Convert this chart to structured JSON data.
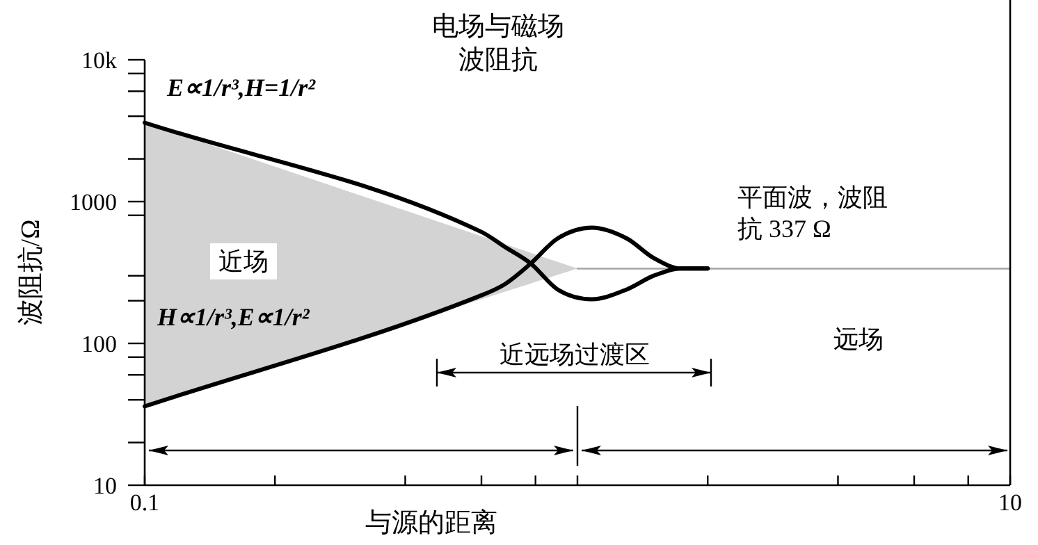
{
  "chart_data": {
    "type": "line",
    "title": "电场与磁场波阻抗",
    "xlabel": "与源的距离",
    "ylabel": "波阻抗/Ω",
    "log": "xy",
    "xlim": [
      0.1,
      10
    ],
    "ylim": [
      10,
      10000
    ],
    "xticks": [
      0.1,
      {
        "value": 0.2,
        "label": null
      },
      {
        "value": 0.4,
        "label": null
      },
      {
        "value": 0.6,
        "label": null
      },
      {
        "value": 0.8,
        "label": null
      },
      {
        "value": 1,
        "label": null
      },
      {
        "value": 2,
        "label": null
      },
      {
        "value": 4,
        "label": null
      },
      {
        "value": 6,
        "label": null
      },
      {
        "value": 8,
        "label": null
      },
      10
    ],
    "yticks": [
      10,
      {
        "value": 20,
        "label": null
      },
      {
        "value": 40,
        "label": null
      },
      {
        "value": 60,
        "label": null
      },
      {
        "value": 80,
        "label": null
      },
      100,
      {
        "value": 200,
        "label": null
      },
      {
        "value": 300,
        "label": null
      },
      {
        "value": 800,
        "label": null
      },
      1000,
      {
        "value": 2000,
        "label": null
      },
      {
        "value": 4000,
        "label": null
      },
      {
        "value": 6000,
        "label": null
      },
      {
        "value": 8000,
        "label": null
      },
      {
        "value": 10000,
        "label": "10k"
      }
    ],
    "grid": false,
    "series": [
      {
        "color": "#aaaaaa",
        "x": [
          0.1,
          1,
          10
        ],
        "values": [
          null,
          337,
          337
        ],
        "lower": [
          36,
          337,
          337
        ],
        "upper": [
          3600,
          337,
          337
        ]
      },
      {
        "color": "#000000",
        "x": [
          0.1,
          0.6,
          0.68,
          0.78,
          0.9,
          1.08,
          1.3,
          1.5,
          1.74,
          2
        ],
        "values": [
          3600,
          611,
          479,
          366,
          240,
          205,
          240,
          300,
          337,
          337
        ]
      },
      {
        "color": "#000000",
        "x": [
          0.1,
          0.59,
          0.68,
          0.78,
          0.9,
          1.08,
          1.3,
          1.5,
          1.74,
          2
        ],
        "values": [
          36,
          214,
          262,
          366,
          550,
          655,
          550,
          400,
          337,
          337
        ]
      }
    ],
    "annotations": [
      "E∝1/r³,H=1/r²",
      "H∝1/r³,E∝1/r²",
      "近场",
      "平面波，波阻抗 337 Ω",
      "远场",
      "近远场过渡区"
    ]
  }
}
